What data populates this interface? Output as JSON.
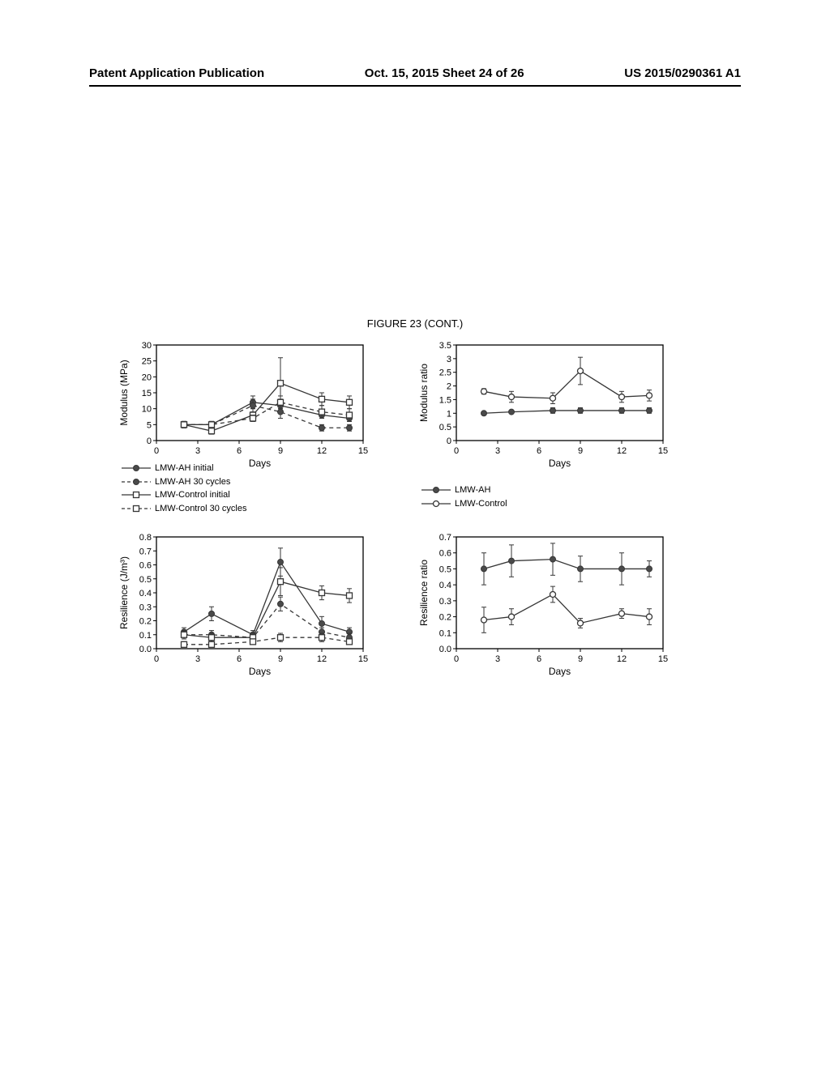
{
  "header": {
    "left": "Patent Application Publication",
    "center": "Oct. 15, 2015   Sheet 24 of 26",
    "right": "US 2015/0290361 A1"
  },
  "figure_title": "FIGURE 23 (CONT.)",
  "charts": {
    "modulus": {
      "type": "line",
      "ylabel": "Modulus (MPa)",
      "xlabel": "Days",
      "ylim": [
        0,
        30
      ],
      "ytick_step": 5,
      "xlim": [
        0,
        15
      ],
      "xtick_step": 3,
      "series": [
        {
          "name": "LMW-AH initial",
          "marker": "filled-circle",
          "dash": "solid",
          "x": [
            2,
            4,
            7,
            9,
            12,
            14
          ],
          "y": [
            5,
            5,
            12,
            11,
            8,
            7
          ],
          "err": [
            1,
            1,
            2,
            2,
            1,
            1
          ]
        },
        {
          "name": "LMW-AH 30 cycles",
          "marker": "filled-circle",
          "dash": "dashed",
          "x": [
            2,
            4,
            7,
            9,
            12,
            14
          ],
          "y": [
            5,
            5,
            11,
            9,
            4,
            4
          ],
          "err": [
            1,
            1,
            2,
            2,
            1,
            1
          ]
        },
        {
          "name": "LMW-Control initial",
          "marker": "open-square",
          "dash": "solid",
          "x": [
            2,
            4,
            7,
            9,
            12,
            14
          ],
          "y": [
            5,
            3,
            8,
            18,
            13,
            12
          ],
          "err": [
            1,
            1,
            2,
            8,
            2,
            2
          ]
        },
        {
          "name": "LMW-Control 30 cycles",
          "marker": "open-square",
          "dash": "dashed",
          "x": [
            2,
            4,
            7,
            9,
            12,
            14
          ],
          "y": [
            5,
            5,
            7,
            12,
            9,
            8
          ],
          "err": [
            1,
            1,
            1,
            2,
            2,
            2
          ]
        }
      ]
    },
    "modulus_ratio": {
      "type": "line",
      "ylabel": "Modulus ratio",
      "xlabel": "Days",
      "ylim": [
        0,
        3.5
      ],
      "ytick_step": 0.5,
      "xlim": [
        0,
        15
      ],
      "xtick_step": 3,
      "series": [
        {
          "name": "LMW-AH",
          "marker": "filled-circle",
          "dash": "solid",
          "x": [
            2,
            4,
            7,
            9,
            12,
            14
          ],
          "y": [
            1,
            1.05,
            1.1,
            1.1,
            1.1,
            1.1
          ],
          "err": [
            0.05,
            0.05,
            0.1,
            0.1,
            0.1,
            0.1
          ]
        },
        {
          "name": "LMW-Control",
          "marker": "open-circle",
          "dash": "solid",
          "x": [
            2,
            4,
            7,
            9,
            12,
            14
          ],
          "y": [
            1.8,
            1.6,
            1.55,
            2.55,
            1.6,
            1.65
          ],
          "err": [
            0.1,
            0.2,
            0.2,
            0.5,
            0.2,
            0.2
          ]
        }
      ]
    },
    "resilience": {
      "type": "line",
      "ylabel": "Resilience (J/m³)",
      "xlabel": "Days",
      "ylim": [
        0,
        0.8
      ],
      "ytick_step": 0.1,
      "xlim": [
        0,
        15
      ],
      "xtick_step": 3,
      "series": [
        {
          "name": "LMW-AH initial",
          "marker": "filled-circle",
          "dash": "solid",
          "x": [
            2,
            4,
            7,
            9,
            12,
            14
          ],
          "y": [
            0.12,
            0.25,
            0.1,
            0.62,
            0.18,
            0.12
          ],
          "err": [
            0.03,
            0.05,
            0.03,
            0.1,
            0.05,
            0.03
          ]
        },
        {
          "name": "LMW-AH 30 cycles",
          "marker": "filled-circle",
          "dash": "dashed",
          "x": [
            2,
            4,
            7,
            9,
            12,
            14
          ],
          "y": [
            0.1,
            0.1,
            0.08,
            0.32,
            0.12,
            0.08
          ],
          "err": [
            0.03,
            0.03,
            0.03,
            0.05,
            0.03,
            0.03
          ]
        },
        {
          "name": "LMW-Control initial",
          "marker": "open-square",
          "dash": "solid",
          "x": [
            2,
            4,
            7,
            9,
            12,
            14
          ],
          "y": [
            0.1,
            0.08,
            0.08,
            0.48,
            0.4,
            0.38
          ],
          "err": [
            0.03,
            0.03,
            0.03,
            0.1,
            0.05,
            0.05
          ]
        },
        {
          "name": "LMW-Control 30 cycles",
          "marker": "open-square",
          "dash": "dashed",
          "x": [
            2,
            4,
            7,
            9,
            12,
            14
          ],
          "y": [
            0.03,
            0.03,
            0.05,
            0.08,
            0.08,
            0.05
          ],
          "err": [
            0.02,
            0.02,
            0.02,
            0.03,
            0.03,
            0.02
          ]
        }
      ]
    },
    "resilience_ratio": {
      "type": "line",
      "ylabel": "Resilience ratio",
      "xlabel": "Days",
      "ylim": [
        0,
        0.7
      ],
      "ytick_step": 0.1,
      "xlim": [
        0,
        15
      ],
      "xtick_step": 3,
      "series": [
        {
          "name": "LMW-AH",
          "marker": "filled-circle",
          "dash": "solid",
          "x": [
            2,
            4,
            7,
            9,
            12,
            14
          ],
          "y": [
            0.5,
            0.55,
            0.56,
            0.5,
            0.5,
            0.5
          ],
          "err": [
            0.1,
            0.1,
            0.1,
            0.08,
            0.1,
            0.05
          ]
        },
        {
          "name": "LMW-Control",
          "marker": "open-circle",
          "dash": "solid",
          "x": [
            2,
            4,
            7,
            9,
            12,
            14
          ],
          "y": [
            0.18,
            0.2,
            0.34,
            0.16,
            0.22,
            0.2
          ],
          "err": [
            0.08,
            0.05,
            0.05,
            0.03,
            0.03,
            0.05
          ]
        }
      ]
    }
  },
  "legends": {
    "left1": [
      {
        "label": "LMW-AH initial",
        "marker": "filled-circle",
        "dash": "solid"
      },
      {
        "label": "LMW-AH 30 cycles",
        "marker": "filled-circle",
        "dash": "dashed"
      },
      {
        "label": "LMW-Control initial",
        "marker": "open-square",
        "dash": "solid"
      },
      {
        "label": "LMW-Control 30 cycles",
        "marker": "open-square",
        "dash": "dashed"
      }
    ],
    "right1": [
      {
        "label": "LMW-AH",
        "marker": "filled-circle",
        "dash": "solid"
      },
      {
        "label": "LMW-Control",
        "marker": "open-circle",
        "dash": "solid"
      }
    ]
  },
  "colors": {
    "line": "#363636",
    "marker_fill": "#4a4a4a",
    "background": "#ffffff",
    "axis": "#000000"
  },
  "font_sizes": {
    "header": 15,
    "figure_title": 13,
    "axis_label": 12,
    "tick": 11,
    "legend": 11
  }
}
